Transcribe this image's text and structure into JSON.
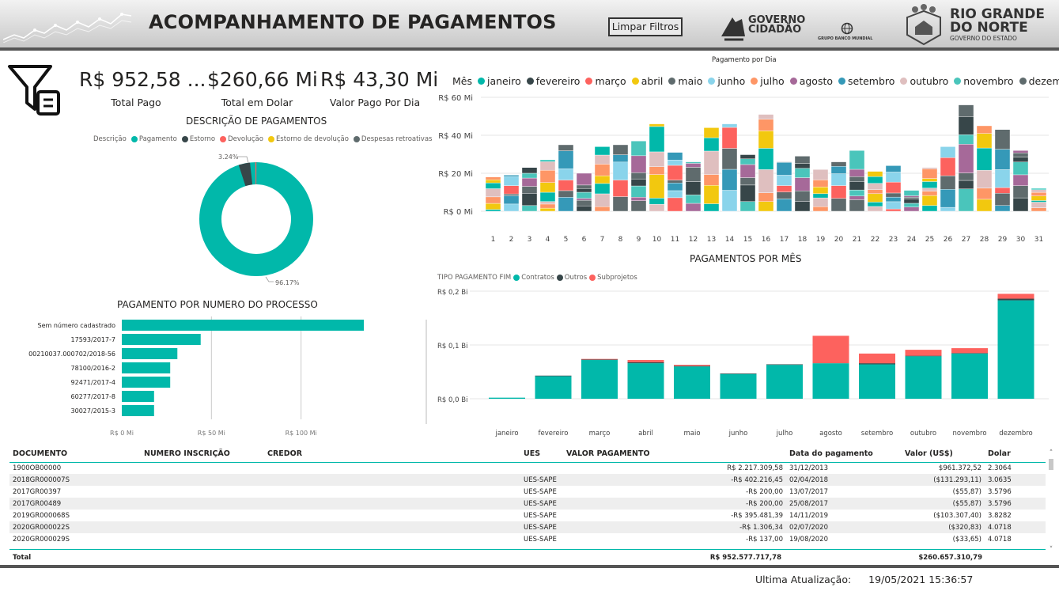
{
  "header": {
    "title": "ACOMPANHAMENTO DE PAGAMENTOS",
    "clear_filters": "Limpar Filtros",
    "logo1_line1": "GOVERNO",
    "logo1_line2": "CIDADÃO",
    "logo2": "GRUPO BANCO MUNDIAL",
    "logo3_line1": "RIO GRANDE",
    "logo3_line2": "DO NORTE",
    "logo3_line3": "GOVERNO DO ESTADO"
  },
  "kpis": [
    {
      "value": "R$ 952,58 ...",
      "label": "Total Pago"
    },
    {
      "value": "$260,66 Mi",
      "label": "Total em Dolar"
    },
    {
      "value": "R$ 43,30 Mi",
      "label": "Valor Pago Por Dia"
    }
  ],
  "donut": {
    "title": "DESCRIÇÃO DE PAGAMENTOS",
    "legend_title": "Descrição",
    "legend": [
      {
        "name": "Pagamento",
        "color": "#01b8aa"
      },
      {
        "name": "Estorno",
        "color": "#374649"
      },
      {
        "name": "Devolução",
        "color": "#fd625e"
      },
      {
        "name": "Estorno de devolução",
        "color": "#f2c80f"
      },
      {
        "name": "Despesas retroativas",
        "color": "#5f6b6d"
      }
    ],
    "label_small": "3.24%",
    "label_big": "96.17%"
  },
  "chart_data": [
    {
      "type": "bar",
      "title": "PAGAMENTO POR NUMERO DO PROCESSO",
      "orientation": "horizontal",
      "categories": [
        "Sem número cadastrado",
        "17593/2017-7",
        "00210037.000702/2018-56",
        "78100/2016-2",
        "92471/2017-4",
        "60277/2017-8",
        "30027/2015-3"
      ],
      "values": [
        135,
        44,
        31,
        27,
        27,
        18,
        18
      ],
      "xticks": [
        "R$ 0 Mi",
        "R$ 50 Mi",
        "R$ 100 Mi"
      ],
      "xlim": [
        0,
        150
      ],
      "color": "#01b8aa"
    },
    {
      "type": "bar",
      "stacked": true,
      "title": "Pagamento por Dia",
      "legend_title": "Mês",
      "months": [
        "janeiro",
        "fevereiro",
        "março",
        "abril",
        "maio",
        "junho",
        "julho",
        "agosto",
        "setembro",
        "outubro",
        "novembro",
        "dezembro"
      ],
      "colors": [
        "#01b8aa",
        "#374649",
        "#fd625e",
        "#f2c80f",
        "#5f6b6d",
        "#8ad4eb",
        "#fe9666",
        "#a66999",
        "#3599b8",
        "#dfbfbf",
        "#4ac5bb",
        "#5f6b6d"
      ],
      "categories": [
        "1",
        "2",
        "3",
        "4",
        "5",
        "6",
        "7",
        "8",
        "9",
        "10",
        "11",
        "12",
        "13",
        "14",
        "15",
        "16",
        "17",
        "18",
        "19",
        "20",
        "21",
        "22",
        "23",
        "24",
        "25",
        "26",
        "27",
        "28",
        "29",
        "30",
        "31"
      ],
      "totals": [
        18,
        19,
        23,
        27,
        35,
        20,
        34,
        35,
        37,
        46,
        31,
        26,
        44,
        46,
        30,
        51,
        26,
        29,
        22,
        26,
        32,
        21,
        24,
        11,
        23,
        34,
        56,
        45,
        43,
        32,
        12
      ],
      "yticks": [
        "R$ 0 Mi",
        "R$ 20 Mi",
        "R$ 40 Mi",
        "R$ 60 Mi"
      ],
      "ylim": [
        0,
        60
      ]
    },
    {
      "type": "bar",
      "stacked": true,
      "title": "PAGAMENTOS POR MÊS",
      "legend_title": "TIPO PAGAMENTO FIM",
      "series": [
        {
          "name": "Contratos",
          "color": "#01b8aa",
          "values": [
            0.002,
            0.042,
            0.072,
            0.066,
            0.06,
            0.046,
            0.063,
            0.066,
            0.064,
            0.079,
            0.084,
            0.183
          ]
        },
        {
          "name": "Outros",
          "color": "#374649",
          "values": [
            0.0,
            0.001,
            0.001,
            0.002,
            0.001,
            0.001,
            0.001,
            0.0,
            0.002,
            0.001,
            0.001,
            0.003
          ]
        },
        {
          "name": "Subprojetos",
          "color": "#fd625e",
          "values": [
            0.0,
            0.0,
            0.001,
            0.004,
            0.002,
            0.0,
            0.0,
            0.051,
            0.018,
            0.011,
            0.009,
            0.009
          ]
        }
      ],
      "categories": [
        "janeiro",
        "fevereiro",
        "março",
        "abril",
        "maio",
        "junho",
        "julho",
        "agosto",
        "setembro",
        "outubro",
        "novembro",
        "dezembro"
      ],
      "yticks": [
        "R$ 0,0 Bi",
        "R$ 0,1 Bi",
        "R$ 0,2 Bi"
      ],
      "ylim": [
        0,
        0.2
      ]
    }
  ],
  "table": {
    "columns": [
      "DOCUMENTO",
      "NUMERO INSCRIÇÃO",
      "CREDOR",
      "UES",
      "VALOR PAGAMENTO",
      "Data do pagamento",
      "Valor (US$)",
      "Dolar"
    ],
    "rows": [
      [
        "1900OB00000",
        "",
        "",
        "",
        "R$ 2.217.309,58",
        "31/12/2013",
        "$961.372,52",
        "2.3064"
      ],
      [
        "2018GR000007S",
        "",
        "",
        "UES-SAPE",
        "-R$ 402.216,45",
        "02/04/2018",
        "($131.293,11)",
        "3.0635"
      ],
      [
        "2017GR00397",
        "",
        "",
        "UES-SAPE",
        "-R$ 200,00",
        "13/07/2017",
        "($55,87)",
        "3.5796"
      ],
      [
        "2017GR00489",
        "",
        "",
        "UES-SAPE",
        "-R$ 200,00",
        "25/08/2017",
        "($55,87)",
        "3.5796"
      ],
      [
        "2019GR000068S",
        "",
        "",
        "UES-SAPE",
        "-R$ 395.481,39",
        "14/11/2019",
        "($103.307,40)",
        "3.8282"
      ],
      [
        "2020GR000022S",
        "",
        "",
        "UES-SAPE",
        "-R$ 1.306,34",
        "02/07/2020",
        "($320,83)",
        "4.0718"
      ],
      [
        "2020GR000029S",
        "",
        "",
        "UES-SAPE",
        "-R$ 137,00",
        "19/08/2020",
        "($33,65)",
        "4.0718"
      ]
    ],
    "total_label": "Total",
    "total_valor": "R$ 952.577.717,78",
    "total_usd": "$260.657.310,79"
  },
  "footer": {
    "label": "Ultima Atualização:",
    "value": "19/05/2021 15:36:57"
  }
}
